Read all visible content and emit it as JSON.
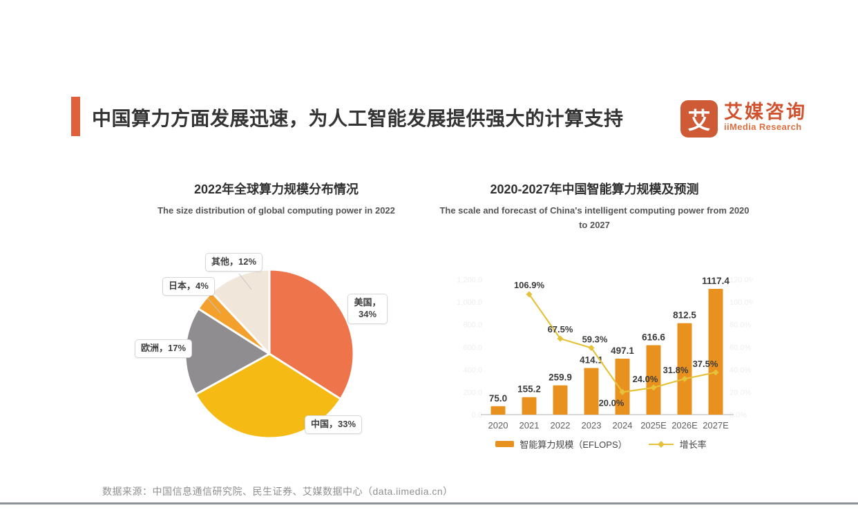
{
  "header": {
    "title": "中国算力方面发展迅速，为人工智能发展提供强大的计算支持",
    "accent_color": "#e0603c"
  },
  "logo": {
    "icon_glyph": "艾",
    "brand_cn": "艾媒咨询",
    "brand_en": "iiMedia Research",
    "color": "#d0512e"
  },
  "chart_data": [
    {
      "type": "pie",
      "title": "2022年全球算力规模分布情况",
      "subtitle": "The size distribution of global computing power in 2022",
      "labels": [
        "美国",
        "中国",
        "欧洲",
        "日本",
        "其他"
      ],
      "values": [
        34,
        33,
        17,
        4,
        12
      ],
      "unit": "%",
      "colors": [
        "#ee744c",
        "#f5ba13",
        "#8f8d90",
        "#f3a02d",
        "#f0e7da"
      ],
      "display_labels": [
        "美国，34%",
        "中国，33%",
        "欧洲，17%",
        "日本，4%",
        "其他，12%"
      ],
      "start_angle": "12 o'clock",
      "direction": "clockwise",
      "legend_position": "none"
    },
    {
      "type": "bar+line",
      "title": "2020-2027年中国智能算力规模及预测",
      "subtitle": "The scale and forecast of China's intelligent computing power from 2020 to 2027",
      "categories": [
        "2020",
        "2021",
        "2022",
        "2023",
        "2024",
        "2025E",
        "2026E",
        "2027E"
      ],
      "series": [
        {
          "name": "智能算力规模（EFLOPS）",
          "type": "bar",
          "color": "#e8911f",
          "values": [
            75.0,
            155.2,
            259.9,
            414.1,
            497.1,
            616.6,
            812.5,
            1117.4
          ]
        },
        {
          "name": "增长率",
          "type": "line",
          "color": "#e5c23a",
          "unit": "%",
          "values": [
            null,
            106.9,
            67.5,
            59.3,
            20.0,
            24.0,
            31.8,
            37.5
          ]
        }
      ],
      "left_axis": {
        "min": 0,
        "max": 1200,
        "tick_values": [
          1200,
          1000,
          800,
          600,
          400,
          200,
          0
        ],
        "ticks": [
          "1,200.0",
          "1,000.0",
          "800.0",
          "600.0",
          "400.0",
          "200.0",
          "0.0"
        ]
      },
      "right_axis": {
        "min": 0,
        "max": 120,
        "tick_values": [
          120,
          100,
          80,
          60,
          40,
          20,
          0
        ],
        "ticks": [
          "120.0%",
          "100.0%",
          "80.0%",
          "60.0%",
          "40.0%",
          "20.0%",
          "0.0%"
        ]
      },
      "grid": false,
      "legend_position": "bottom"
    }
  ],
  "footer": {
    "source": "数据来源：中国信息通信研究院、民生证券、艾媒数据中心（data.iimedia.cn）"
  }
}
